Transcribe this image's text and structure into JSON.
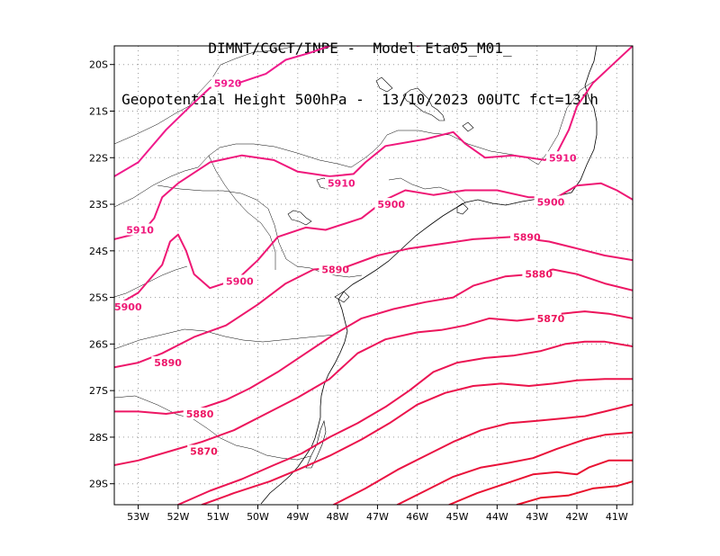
{
  "title": {
    "line1": "DIMNT/CGCT/INPE -  Model Eta05_M01_",
    "line2": "Geopotential Height 500hPa -  13/10/2023 00UTC fct=131h"
  },
  "axes": {
    "lon_labels": [
      "53W",
      "52W",
      "51W",
      "50W",
      "49W",
      "48W",
      "47W",
      "46W",
      "45W",
      "44W",
      "43W",
      "42W",
      "41W"
    ],
    "lat_labels": [
      "20S",
      "21S",
      "22S",
      "23S",
      "24S",
      "25S",
      "26S",
      "27S",
      "28S",
      "29S"
    ]
  },
  "colors": {
    "pink": "#f01a8c",
    "red": "#e8102a",
    "coast": "#000000",
    "grid": "#9a9a9a"
  },
  "contours": [
    {
      "value": "5920",
      "points": [
        [
          -53.6,
          -22.4
        ],
        [
          -53,
          -22.1
        ],
        [
          -52.3,
          -21.4
        ],
        [
          -51.7,
          -20.9
        ],
        [
          -51.2,
          -20.5
        ],
        [
          -50.5,
          -20.4
        ],
        [
          -49.8,
          -20.2
        ],
        [
          -49.3,
          -19.9
        ],
        [
          -48.7,
          -19.75
        ],
        [
          -48.2,
          -19.6
        ]
      ],
      "labels": [
        [
          -51.1,
          -20.4
        ]
      ]
    },
    {
      "value": "5920",
      "points": [
        [
          -46,
          -19.6
        ],
        [
          -45.5,
          -19.55
        ]
      ],
      "labels": []
    },
    {
      "value": "5910",
      "points": [
        [
          -53.6,
          -23.75
        ],
        [
          -52.9,
          -23.6
        ],
        [
          -52.6,
          -23.3
        ],
        [
          -52.4,
          -22.85
        ],
        [
          -52,
          -22.55
        ],
        [
          -51.2,
          -22.1
        ],
        [
          -50.4,
          -21.95
        ],
        [
          -49.6,
          -22.05
        ],
        [
          -49,
          -22.3
        ],
        [
          -48.2,
          -22.4
        ],
        [
          -47.6,
          -22.35
        ],
        [
          -47.3,
          -22.1
        ],
        [
          -46.8,
          -21.75
        ],
        [
          -45.8,
          -21.6
        ],
        [
          -45.1,
          -21.45
        ],
        [
          -44.8,
          -21.7
        ],
        [
          -44.3,
          -22
        ],
        [
          -43.6,
          -21.95
        ],
        [
          -43.2,
          -22.0
        ],
        [
          -42.8,
          -22.05
        ],
        [
          -42.5,
          -21.9
        ],
        [
          -42.2,
          -21.4
        ],
        [
          -42,
          -20.9
        ],
        [
          -41.6,
          -20.4
        ],
        [
          -41.1,
          -20
        ],
        [
          -40.6,
          -19.6
        ]
      ],
      "labels": [
        [
          -53.3,
          -23.55
        ],
        [
          -48.25,
          -22.55
        ],
        [
          -42.7,
          -22.0
        ]
      ]
    },
    {
      "value": "5900",
      "points": [
        [
          -53.6,
          -25.2
        ],
        [
          -53,
          -24.9
        ],
        [
          -52.4,
          -24.3
        ],
        [
          -52.2,
          -23.8
        ],
        [
          -52,
          -23.65
        ],
        [
          -51.8,
          -24.0
        ],
        [
          -51.6,
          -24.5
        ],
        [
          -51.2,
          -24.8
        ],
        [
          -50.5,
          -24.6
        ],
        [
          -50,
          -24.2
        ],
        [
          -49.5,
          -23.7
        ],
        [
          -48.8,
          -23.5
        ],
        [
          -48.3,
          -23.55
        ],
        [
          -47.4,
          -23.3
        ],
        [
          -46.8,
          -22.9
        ],
        [
          -46.3,
          -22.7
        ],
        [
          -45.6,
          -22.8
        ],
        [
          -44.8,
          -22.7
        ],
        [
          -44,
          -22.7
        ],
        [
          -43.2,
          -22.85
        ],
        [
          -42.5,
          -22.85
        ],
        [
          -42,
          -22.6
        ],
        [
          -41.4,
          -22.55
        ],
        [
          -41,
          -22.7
        ],
        [
          -40.6,
          -22.9
        ]
      ],
      "labels": [
        [
          -53.6,
          -25.2
        ],
        [
          -50.8,
          -24.65
        ],
        [
          -47,
          -23.0
        ],
        [
          -43,
          -22.95
        ]
      ]
    },
    {
      "value": "5890",
      "points": [
        [
          -53.6,
          -26.5
        ],
        [
          -53,
          -26.4
        ],
        [
          -52.4,
          -26.2
        ],
        [
          -51.6,
          -25.85
        ],
        [
          -50.8,
          -25.6
        ],
        [
          -50,
          -25.15
        ],
        [
          -49.3,
          -24.7
        ],
        [
          -48.6,
          -24.4
        ],
        [
          -47.8,
          -24.35
        ],
        [
          -47,
          -24.1
        ],
        [
          -46.2,
          -23.95
        ],
        [
          -45.4,
          -23.85
        ],
        [
          -44.6,
          -23.75
        ],
        [
          -43.6,
          -23.7
        ],
        [
          -42.7,
          -23.8
        ],
        [
          -42,
          -23.95
        ],
        [
          -41.3,
          -24.1
        ],
        [
          -40.6,
          -24.2
        ]
      ],
      "labels": [
        [
          -52.6,
          -26.4
        ],
        [
          -48.4,
          -24.4
        ],
        [
          -43.6,
          -23.7
        ]
      ]
    },
    {
      "value": "5880",
      "points": [
        [
          -53.6,
          -27.45
        ],
        [
          -53,
          -27.45
        ],
        [
          -52.3,
          -27.5
        ],
        [
          -51.5,
          -27.4
        ],
        [
          -50.8,
          -27.2
        ],
        [
          -50.2,
          -26.95
        ],
        [
          -49.5,
          -26.6
        ],
        [
          -48.8,
          -26.2
        ],
        [
          -48.1,
          -25.8
        ],
        [
          -47.4,
          -25.45
        ],
        [
          -46.6,
          -25.25
        ],
        [
          -45.8,
          -25.1
        ],
        [
          -45.1,
          -25.0
        ],
        [
          -44.6,
          -24.75
        ],
        [
          -43.8,
          -24.55
        ],
        [
          -43.1,
          -24.5
        ],
        [
          -42.6,
          -24.4
        ],
        [
          -42,
          -24.5
        ],
        [
          -41.3,
          -24.7
        ],
        [
          -40.6,
          -24.85
        ]
      ],
      "labels": [
        [
          -51.8,
          -27.5
        ],
        [
          -43.3,
          -24.5
        ]
      ]
    },
    {
      "value": "5870",
      "points": [
        [
          -53.6,
          -28.6
        ],
        [
          -53,
          -28.5
        ],
        [
          -52.2,
          -28.3
        ],
        [
          -51.4,
          -28.1
        ],
        [
          -50.6,
          -27.85
        ],
        [
          -49.8,
          -27.5
        ],
        [
          -49,
          -27.15
        ],
        [
          -48.2,
          -26.75
        ],
        [
          -47.5,
          -26.2
        ],
        [
          -46.8,
          -25.9
        ],
        [
          -46,
          -25.75
        ],
        [
          -45.4,
          -25.7
        ],
        [
          -44.8,
          -25.6
        ],
        [
          -44.2,
          -25.45
        ],
        [
          -43.5,
          -25.5
        ],
        [
          -43,
          -25.45
        ],
        [
          -42.4,
          -25.35
        ],
        [
          -41.8,
          -25.3
        ],
        [
          -41.2,
          -25.35
        ],
        [
          -40.6,
          -25.45
        ]
      ],
      "labels": [
        [
          -51.7,
          -28.3
        ],
        [
          -43.0,
          -25.45
        ]
      ]
    },
    {
      "value": "",
      "points": [
        [
          -52,
          -29.45
        ],
        [
          -51.2,
          -29.15
        ],
        [
          -50.4,
          -28.9
        ],
        [
          -49.6,
          -28.6
        ],
        [
          -48.9,
          -28.35
        ],
        [
          -48.2,
          -28.0
        ],
        [
          -47.5,
          -27.7
        ],
        [
          -46.8,
          -27.35
        ],
        [
          -46.2,
          -27.0
        ],
        [
          -45.6,
          -26.6
        ],
        [
          -45,
          -26.4
        ],
        [
          -44.3,
          -26.3
        ],
        [
          -43.6,
          -26.25
        ],
        [
          -42.9,
          -26.15
        ],
        [
          -42.3,
          -26.0
        ],
        [
          -41.8,
          -25.95
        ],
        [
          -41.3,
          -25.95
        ],
        [
          -40.6,
          -26.05
        ]
      ],
      "labels": []
    },
    {
      "value": "",
      "points": [
        [
          -51.4,
          -29.45
        ],
        [
          -50.6,
          -29.2
        ],
        [
          -49.7,
          -28.95
        ],
        [
          -49,
          -28.7
        ],
        [
          -48.2,
          -28.4
        ],
        [
          -47.4,
          -28.05
        ],
        [
          -46.7,
          -27.7
        ],
        [
          -46,
          -27.3
        ],
        [
          -45.3,
          -27.05
        ],
        [
          -44.6,
          -26.9
        ],
        [
          -43.9,
          -26.85
        ],
        [
          -43.2,
          -26.9
        ],
        [
          -42.6,
          -26.85
        ],
        [
          -42,
          -26.78
        ],
        [
          -41.3,
          -26.75
        ],
        [
          -40.6,
          -26.75
        ]
      ],
      "labels": []
    },
    {
      "value": "",
      "points": [
        [
          -48.1,
          -29.45
        ],
        [
          -47.3,
          -29.1
        ],
        [
          -46.5,
          -28.7
        ],
        [
          -45.8,
          -28.4
        ],
        [
          -45.1,
          -28.1
        ],
        [
          -44.4,
          -27.85
        ],
        [
          -43.7,
          -27.7
        ],
        [
          -43.0,
          -27.65
        ],
        [
          -42.4,
          -27.6
        ],
        [
          -41.8,
          -27.55
        ],
        [
          -41.3,
          -27.45
        ],
        [
          -40.6,
          -27.3
        ]
      ],
      "labels": []
    },
    {
      "value": "",
      "points": [
        [
          -46.5,
          -29.45
        ],
        [
          -45.8,
          -29.15
        ],
        [
          -45.1,
          -28.85
        ],
        [
          -44.4,
          -28.65
        ],
        [
          -43.7,
          -28.55
        ],
        [
          -43.1,
          -28.45
        ],
        [
          -42.5,
          -28.25
        ],
        [
          -41.8,
          -28.05
        ],
        [
          -41.3,
          -27.95
        ],
        [
          -40.6,
          -27.9
        ]
      ],
      "labels": []
    },
    {
      "value": "",
      "points": [
        [
          -45.2,
          -29.45
        ],
        [
          -44.5,
          -29.2
        ],
        [
          -43.8,
          -29.0
        ],
        [
          -43.1,
          -28.8
        ],
        [
          -42.5,
          -28.75
        ],
        [
          -42,
          -28.8
        ],
        [
          -41.7,
          -28.65
        ],
        [
          -41.2,
          -28.5
        ],
        [
          -40.6,
          -28.5
        ]
      ],
      "labels": []
    },
    {
      "value": "",
      "points": [
        [
          -43.5,
          -29.45
        ],
        [
          -42.9,
          -29.3
        ],
        [
          -42.2,
          -29.25
        ],
        [
          -41.6,
          -29.1
        ],
        [
          -41,
          -29.05
        ],
        [
          -40.6,
          -28.95
        ]
      ],
      "labels": []
    }
  ]
}
